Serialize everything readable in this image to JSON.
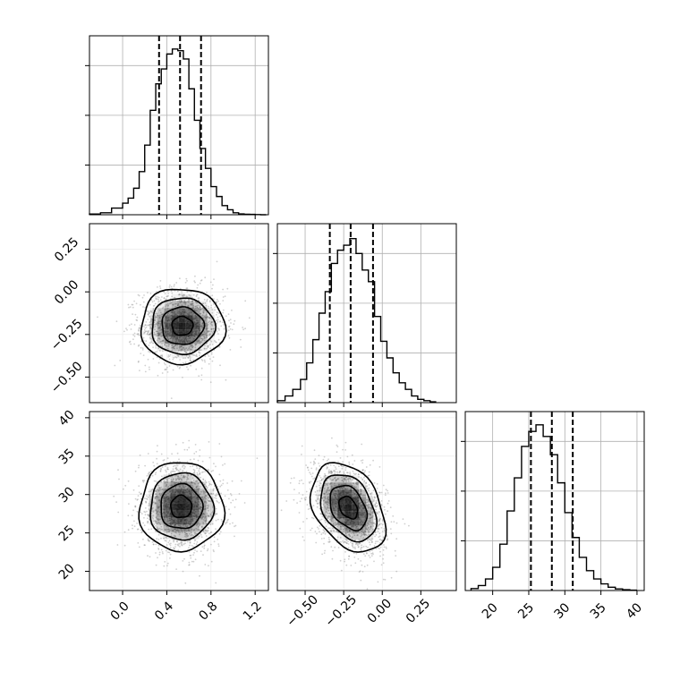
{
  "chart_data": {
    "type": "corner",
    "grid": true,
    "histograms": [
      {
        "param_index": 0,
        "bin_edges": [
          -0.3,
          -0.2,
          -0.1,
          0.0,
          0.05,
          0.1,
          0.15,
          0.2,
          0.25,
          0.3,
          0.35,
          0.4,
          0.45,
          0.5,
          0.55,
          0.6,
          0.65,
          0.7,
          0.75,
          0.8,
          0.85,
          0.9,
          0.95,
          1.0,
          1.05,
          1.1,
          1.15,
          1.2,
          1.25,
          1.3
        ],
        "heights": [
          0.004,
          0.012,
          0.04,
          0.07,
          0.1,
          0.16,
          0.26,
          0.42,
          0.63,
          0.79,
          0.88,
          0.97,
          1.0,
          0.99,
          0.94,
          0.76,
          0.57,
          0.4,
          0.28,
          0.17,
          0.11,
          0.055,
          0.03,
          0.012,
          0.005,
          0.003,
          0.002,
          0.001,
          0.0
        ],
        "quantile_lines": [
          0.33,
          0.52,
          0.71
        ],
        "xlim": [
          -0.3,
          1.32
        ]
      },
      {
        "param_index": 1,
        "bin_edges": [
          -0.68,
          -0.63,
          -0.58,
          -0.53,
          -0.49,
          -0.45,
          -0.41,
          -0.37,
          -0.33,
          -0.29,
          -0.25,
          -0.21,
          -0.17,
          -0.13,
          -0.09,
          -0.05,
          -0.01,
          0.03,
          0.07,
          0.11,
          0.15,
          0.19,
          0.23,
          0.27,
          0.31,
          0.35
        ],
        "heights": [
          0.012,
          0.04,
          0.08,
          0.14,
          0.24,
          0.38,
          0.54,
          0.67,
          0.84,
          0.92,
          0.95,
          0.99,
          0.9,
          0.8,
          0.73,
          0.52,
          0.37,
          0.27,
          0.18,
          0.12,
          0.08,
          0.04,
          0.02,
          0.012,
          0.005
        ],
        "quantile_lines": [
          -0.34,
          -0.205,
          -0.06
        ],
        "xlim": [
          -0.68,
          0.48
        ]
      },
      {
        "param_index": 2,
        "bin_edges": [
          17.0,
          18.0,
          19.0,
          20.0,
          21.0,
          22.0,
          23.0,
          24.0,
          25.0,
          26.0,
          27.0,
          28.0,
          29.0,
          30.0,
          31.0,
          32.0,
          33.0,
          34.0,
          35.0,
          36.0,
          37.0,
          38.0,
          39.0,
          40.0
        ],
        "heights": [
          0.012,
          0.03,
          0.07,
          0.14,
          0.28,
          0.48,
          0.68,
          0.87,
          0.96,
          1.0,
          0.93,
          0.82,
          0.65,
          0.47,
          0.32,
          0.2,
          0.12,
          0.07,
          0.04,
          0.02,
          0.01,
          0.005,
          0.002
        ],
        "quantile_lines": [
          25.3,
          28.2,
          31.1
        ],
        "xlim": [
          16.2,
          41.0
        ]
      }
    ],
    "contours_2d": [
      {
        "x_param": 0,
        "y_param": 1,
        "center": [
          0.54,
          -0.2
        ],
        "sigma_x": 0.19,
        "sigma_y": 0.11,
        "rho": 0.0,
        "xlim": [
          -0.3,
          1.32
        ],
        "ylim": [
          -0.65,
          0.4
        ]
      },
      {
        "x_param": 0,
        "y_param": 2,
        "center": [
          0.53,
          28.4
        ],
        "sigma_x": 0.19,
        "sigma_y": 2.9,
        "rho": 0.0,
        "xlim": [
          -0.3,
          1.32
        ],
        "ylim": [
          17.5,
          40.8
        ]
      },
      {
        "x_param": 1,
        "y_param": 2,
        "center": [
          -0.22,
          28.3
        ],
        "sigma_x": 0.12,
        "sigma_y": 2.9,
        "rho": -0.35,
        "xlim": [
          -0.68,
          0.48
        ],
        "ylim": [
          17.5,
          40.8
        ]
      }
    ],
    "axes": {
      "x_ticks": [
        [
          "0.0",
          "0.4",
          "0.8",
          "1.2"
        ],
        [
          "−0.50",
          "−0.25",
          "0.00",
          "0.25"
        ],
        [
          "20",
          "25",
          "30",
          "35",
          "40"
        ]
      ],
      "y_ticks": [
        null,
        [
          "0.25",
          "0.00",
          "−0.25",
          "−0.50"
        ],
        [
          "40",
          "35",
          "30",
          "25",
          "20"
        ]
      ],
      "x_tick_values": [
        [
          0.0,
          0.4,
          0.8,
          1.2
        ],
        [
          -0.5,
          -0.25,
          0.0,
          0.25
        ],
        [
          20,
          25,
          30,
          35,
          40
        ]
      ],
      "y_tick_values": [
        null,
        [
          0.25,
          0.0,
          -0.25,
          -0.5
        ],
        [
          40,
          35,
          30,
          25,
          20
        ]
      ]
    },
    "xlabel": "",
    "ylabel": "",
    "title": ""
  },
  "colors": {
    "line": "#000000",
    "grid": "#b0b0b0",
    "density": "#000000",
    "points": "#777777"
  }
}
